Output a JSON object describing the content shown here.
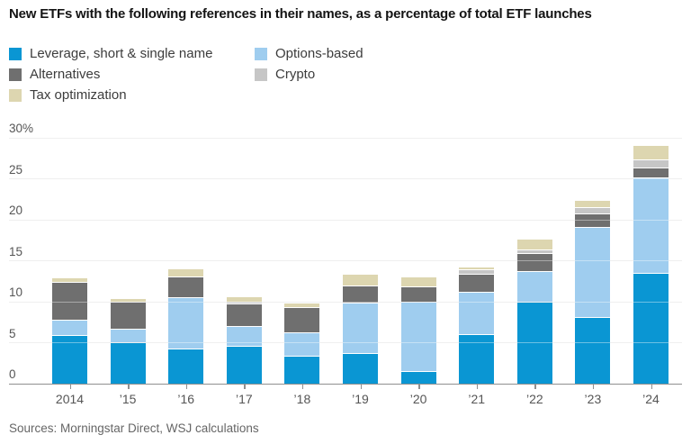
{
  "header": {
    "title": "New ETFs with the following references in their names, as a percentage of total ETF launches"
  },
  "legend": {
    "items": [
      {
        "key": "leverage",
        "label": "Leverage, short & single name"
      },
      {
        "key": "options",
        "label": "Options-based"
      },
      {
        "key": "alternatives",
        "label": "Alternatives"
      },
      {
        "key": "crypto",
        "label": "Crypto"
      },
      {
        "key": "tax",
        "label": "Tax optimization"
      }
    ]
  },
  "colors": {
    "leverage": "#0a96d3",
    "options": "#9fcdef",
    "alternatives": "#6f6f6f",
    "crypto": "#c6c6c6",
    "tax": "#ddd6b0",
    "gridline": "#e4e4e4",
    "axis": "#8f8f8f",
    "tick_text": "#555555"
  },
  "chart_data": {
    "type": "bar",
    "stacked": true,
    "title": "New ETFs with the following references in their names, as a percentage of total ETF launches",
    "categories": [
      "2014",
      "’15",
      "’16",
      "’17",
      "’18",
      "’19",
      "’20",
      "’21",
      "’22",
      "’23",
      "’24"
    ],
    "series": [
      {
        "name": "Leverage, short & single name",
        "key": "leverage",
        "values": [
          5.9,
          5.0,
          4.2,
          4.6,
          3.3,
          3.7,
          1.5,
          6.0,
          10.0,
          8.1,
          13.5
        ]
      },
      {
        "name": "Options-based",
        "key": "options",
        "values": [
          1.8,
          1.6,
          6.3,
          2.4,
          2.9,
          6.1,
          8.4,
          5.2,
          3.7,
          11.0,
          11.6
        ]
      },
      {
        "name": "Alternatives",
        "key": "alternatives",
        "values": [
          4.7,
          3.4,
          2.5,
          2.7,
          3.1,
          2.1,
          1.9,
          2.2,
          2.2,
          1.6,
          1.2
        ]
      },
      {
        "name": "Crypto",
        "key": "crypto",
        "values": [
          0,
          0,
          0,
          0.3,
          0,
          0,
          0,
          0.5,
          0.4,
          0.8,
          1.0
        ]
      },
      {
        "name": "Tax optimization",
        "key": "tax",
        "values": [
          0.5,
          0.4,
          1.0,
          0.6,
          0.5,
          1.4,
          1.2,
          0.3,
          1.3,
          0.9,
          1.8
        ]
      }
    ],
    "xlabel": "",
    "ylabel": "",
    "ylim": [
      0,
      30
    ],
    "yticks": [
      {
        "value": 30,
        "label": "30%"
      },
      {
        "value": 25,
        "label": "25"
      },
      {
        "value": 20,
        "label": "20"
      },
      {
        "value": 15,
        "label": "15"
      },
      {
        "value": 10,
        "label": "10"
      },
      {
        "value": 5,
        "label": "5"
      },
      {
        "value": 0,
        "label": "0"
      }
    ],
    "grid": true,
    "legend_position": "top-left"
  },
  "footer": {
    "sources": "Sources: Morningstar Direct, WSJ calculations"
  }
}
